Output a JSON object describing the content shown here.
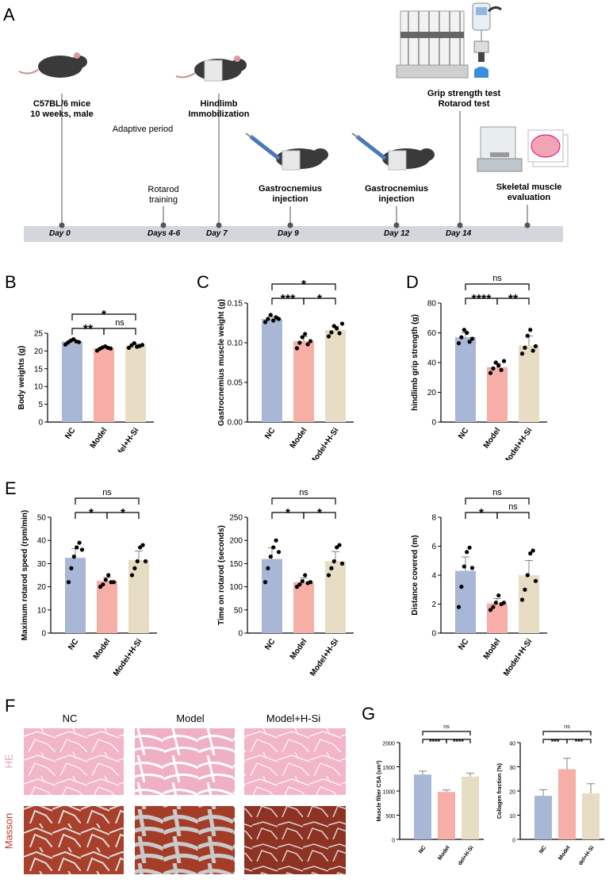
{
  "panels": {
    "A": "A",
    "B": "B",
    "C": "C",
    "D": "D",
    "E": "E",
    "F": "F",
    "G": "G"
  },
  "timeline": {
    "mice_label": [
      "C57BL/6 mice",
      "10 weeks, male"
    ],
    "hindlimb_label": [
      "Hindlimb",
      "Immobilization"
    ],
    "adaptive": "Adaptive period",
    "rotarod_training": [
      "Rotarod",
      "training"
    ],
    "gastro1": [
      "Gastrocnemius",
      "injection"
    ],
    "gastro2": [
      "Gastrocnemius",
      "injection"
    ],
    "grip_label": [
      "Grip strength test",
      "Rotarod test"
    ],
    "skeletal_label": [
      "Skeletal muscle",
      "evaluation"
    ],
    "days": [
      "Day 0",
      "Days 4-6",
      "Day 7",
      "Day 9",
      "Day 12",
      "Day 14"
    ]
  },
  "colors": {
    "nc": "#a9b7d6",
    "model": "#f6aea6",
    "hsi": "#e7dcc4"
  },
  "histology": {
    "columns": [
      "NC",
      "Model",
      "Model+H-Si"
    ],
    "rows": [
      "HE",
      "Masson"
    ],
    "he_color": "#e7a1b3",
    "masson_color": "#c0392b"
  },
  "chart_data": [
    {
      "id": "B",
      "type": "bar",
      "categories": [
        "NC",
        "Model",
        "Model+H-Si"
      ],
      "values": [
        22.7,
        20.8,
        21.5
      ],
      "ylabel": "Body weights (g)",
      "ylim": [
        0,
        25
      ],
      "yticks": [
        "0",
        "5",
        "10",
        "15",
        "20",
        "25"
      ],
      "points": [
        [
          21.8,
          22.4,
          22.9,
          23.3,
          22.7,
          22.5
        ],
        [
          20.1,
          20.6,
          21.0,
          21.3,
          20.9,
          20.7
        ],
        [
          20.9,
          21.6,
          22.2,
          21.2,
          21.4,
          21.7
        ]
      ],
      "sig": [
        {
          "a": 0,
          "b": 1,
          "label": "**"
        },
        {
          "a": 1,
          "b": 2,
          "label": "ns"
        },
        {
          "a": 0,
          "b": 2,
          "label": "*"
        }
      ]
    },
    {
      "id": "C",
      "type": "bar",
      "categories": [
        "NC",
        "Model",
        "Model+H-Si"
      ],
      "values": [
        0.13,
        0.102,
        0.116
      ],
      "ylabel": "Gastrocnemius muscle weight (g)",
      "ylim": [
        0,
        0.15
      ],
      "yticks": [
        "0.00",
        "0.05",
        "0.10",
        "0.15"
      ],
      "points": [
        [
          0.126,
          0.13,
          0.135,
          0.128,
          0.132,
          0.13
        ],
        [
          0.093,
          0.1,
          0.107,
          0.111,
          0.098,
          0.102
        ],
        [
          0.108,
          0.113,
          0.121,
          0.118,
          0.112,
          0.124
        ]
      ],
      "sig": [
        {
          "a": 0,
          "b": 1,
          "label": "***"
        },
        {
          "a": 1,
          "b": 2,
          "label": "*"
        },
        {
          "a": 0,
          "b": 2,
          "label": "*"
        }
      ]
    },
    {
      "id": "D",
      "type": "bar",
      "categories": [
        "NC",
        "Model",
        "Model+H-Si"
      ],
      "values": [
        57,
        37,
        51.5
      ],
      "ylabel": "hindlimb grip strength (g)",
      "ylim": [
        0,
        80
      ],
      "yticks": [
        "0",
        "20",
        "40",
        "60",
        "80"
      ],
      "points": [
        [
          53,
          57,
          62,
          60,
          54,
          56
        ],
        [
          33,
          36,
          40,
          38,
          35,
          41
        ],
        [
          46,
          50,
          58,
          62,
          48,
          51
        ]
      ],
      "sig": [
        {
          "a": 0,
          "b": 1,
          "label": "****"
        },
        {
          "a": 1,
          "b": 2,
          "label": "**"
        },
        {
          "a": 0,
          "b": 2,
          "label": "ns"
        }
      ]
    },
    {
      "id": "E1",
      "type": "bar",
      "categories": [
        "NC",
        "Model",
        "Model+H-Si"
      ],
      "values": [
        32.5,
        22.5,
        31.5
      ],
      "ylabel": "Maximum rotarod speed (rpm/min)",
      "ylim": [
        0,
        50
      ],
      "yticks": [
        "0",
        "10",
        "20",
        "30",
        "40",
        "50"
      ],
      "points": [
        [
          22,
          28,
          33,
          37,
          39,
          36
        ],
        [
          20,
          21,
          23,
          25,
          22,
          22
        ],
        [
          25,
          28,
          31,
          37,
          38,
          31
        ]
      ],
      "sig": [
        {
          "a": 0,
          "b": 1,
          "label": "*"
        },
        {
          "a": 1,
          "b": 2,
          "label": "*"
        },
        {
          "a": 0,
          "b": 2,
          "label": "ns"
        }
      ]
    },
    {
      "id": "E2",
      "type": "bar",
      "categories": [
        "NC",
        "Model",
        "Model+H-Si"
      ],
      "values": [
        160,
        110,
        155
      ],
      "ylabel": "Time on rotarod (seconds)",
      "ylim": [
        0,
        250
      ],
      "yticks": [
        "0",
        "50",
        "100",
        "150",
        "200",
        "250"
      ],
      "points": [
        [
          110,
          140,
          165,
          185,
          200,
          175
        ],
        [
          100,
          105,
          112,
          125,
          108,
          110
        ],
        [
          125,
          140,
          155,
          185,
          190,
          150
        ]
      ],
      "sig": [
        {
          "a": 0,
          "b": 1,
          "label": "*"
        },
        {
          "a": 1,
          "b": 2,
          "label": "*"
        },
        {
          "a": 0,
          "b": 2,
          "label": "ns"
        }
      ]
    },
    {
      "id": "E3",
      "type": "bar",
      "categories": [
        "NC",
        "Model",
        "Model+H-Si"
      ],
      "values": [
        4.3,
        2.05,
        4.0
      ],
      "ylabel": "Distance covered (m)",
      "ylim": [
        0,
        8
      ],
      "yticks": [
        "0",
        "2",
        "4",
        "6",
        "8"
      ],
      "points": [
        [
          1.8,
          3.2,
          4.6,
          5.6,
          5.9,
          4.5
        ],
        [
          1.6,
          1.8,
          2.1,
          2.6,
          2.0,
          2.1
        ],
        [
          2.3,
          3.0,
          4.0,
          5.5,
          5.7,
          3.6
        ]
      ],
      "sig": [
        {
          "a": 0,
          "b": 1,
          "label": "*"
        },
        {
          "a": 1,
          "b": 2,
          "label": "ns"
        },
        {
          "a": 0,
          "b": 2,
          "label": "ns"
        }
      ]
    },
    {
      "id": "G1",
      "type": "bar",
      "categories": [
        "NC",
        "Model",
        "Model+H-Si"
      ],
      "values": [
        1340,
        980,
        1295
      ],
      "errors": [
        70,
        40,
        70
      ],
      "ylabel": "Muscle fiber CSA (um²)",
      "ylim": [
        0,
        2000
      ],
      "yticks": [
        "0",
        "500",
        "1000",
        "1500",
        "2000"
      ],
      "sig": [
        {
          "a": 0,
          "b": 1,
          "label": "****"
        },
        {
          "a": 1,
          "b": 2,
          "label": "****"
        },
        {
          "a": 0,
          "b": 2,
          "label": "ns"
        }
      ]
    },
    {
      "id": "G2",
      "type": "bar",
      "categories": [
        "NC",
        "Model",
        "Model+H-Si"
      ],
      "values": [
        18,
        29,
        19
      ],
      "errors": [
        2.5,
        4.5,
        4
      ],
      "ylabel": "Collagen fraction (%)",
      "ylim": [
        0,
        40
      ],
      "yticks": [
        "0",
        "10",
        "20",
        "30",
        "40"
      ],
      "sig": [
        {
          "a": 0,
          "b": 1,
          "label": "***"
        },
        {
          "a": 1,
          "b": 2,
          "label": "***"
        },
        {
          "a": 0,
          "b": 2,
          "label": "ns"
        }
      ]
    }
  ]
}
